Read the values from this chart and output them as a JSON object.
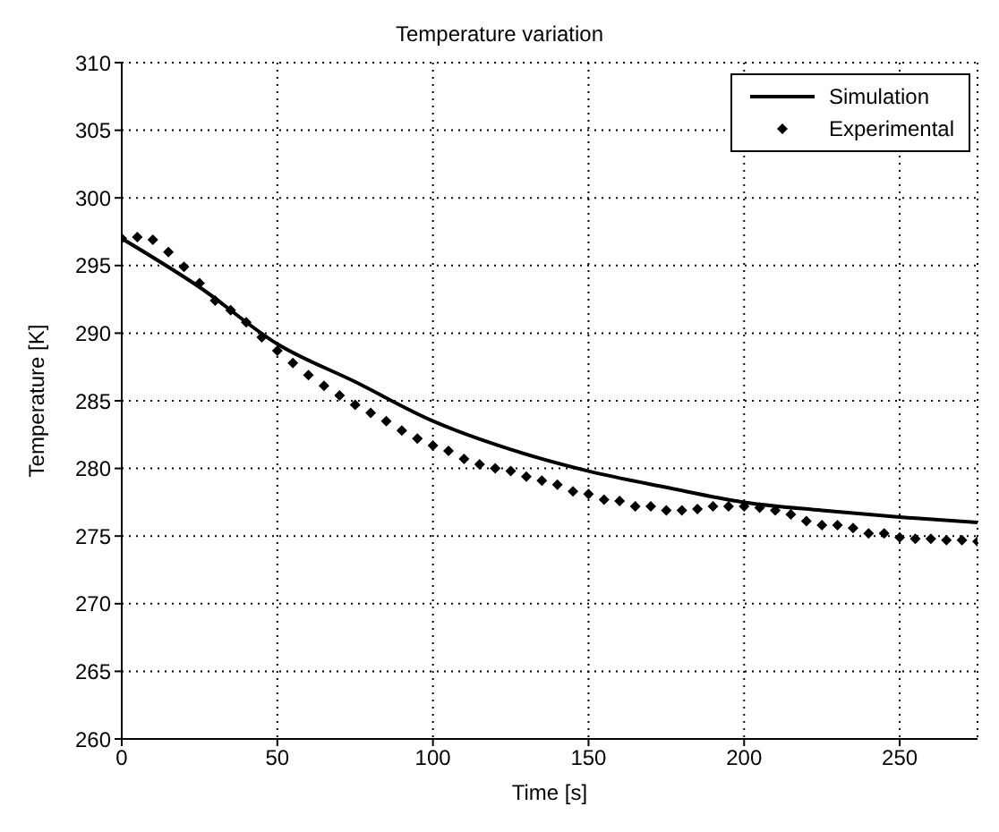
{
  "chart_data": {
    "type": "line",
    "title": "Temperature variation",
    "xlabel": "Time [s]",
    "ylabel": "Temperature [K]",
    "xlim": [
      0,
      275
    ],
    "xticks": [
      0,
      50,
      100,
      150,
      200,
      250
    ],
    "ylim": [
      260,
      310
    ],
    "yticks": [
      260,
      265,
      270,
      275,
      280,
      285,
      290,
      295,
      300,
      305,
      310
    ],
    "grid": true,
    "legend": "top right",
    "series": [
      {
        "name": "Simulation",
        "color": "#000000",
        "marker": "none",
        "line_style": "solid",
        "x": [
          0,
          25,
          50,
          75,
          100,
          125,
          150,
          175,
          200,
          225,
          250,
          275
        ],
        "values": [
          297.0,
          293.4,
          289.2,
          286.4,
          283.5,
          281.4,
          279.8,
          278.6,
          277.5,
          276.9,
          276.4,
          276.0
        ]
      },
      {
        "name": "Experimental",
        "type": "scatter",
        "color": "#000000",
        "marker": "diamond",
        "x": [
          0,
          5,
          10,
          15,
          20,
          25,
          30,
          35,
          40,
          45,
          50,
          55,
          60,
          65,
          70,
          75,
          80,
          85,
          90,
          95,
          100,
          105,
          110,
          115,
          120,
          125,
          130,
          135,
          140,
          145,
          150,
          155,
          160,
          165,
          170,
          175,
          180,
          185,
          190,
          195,
          200,
          205,
          210,
          215,
          220,
          225,
          230,
          235,
          240,
          245,
          250,
          255,
          260,
          265,
          270,
          275
        ],
        "values": [
          297.0,
          297.1,
          296.9,
          296.0,
          294.9,
          293.7,
          292.4,
          291.7,
          290.8,
          289.7,
          288.7,
          287.8,
          286.9,
          286.1,
          285.4,
          284.7,
          284.1,
          283.5,
          282.8,
          282.2,
          281.7,
          281.3,
          280.7,
          280.3,
          280.0,
          279.8,
          279.4,
          279.1,
          278.8,
          278.3,
          278.1,
          277.7,
          277.6,
          277.2,
          277.2,
          276.9,
          276.9,
          277.0,
          277.2,
          277.2,
          277.2,
          277.1,
          276.9,
          276.6,
          276.1,
          275.8,
          275.8,
          275.6,
          275.2,
          275.2,
          274.9,
          274.8,
          274.8,
          274.7,
          274.7,
          274.6
        ]
      }
    ]
  }
}
